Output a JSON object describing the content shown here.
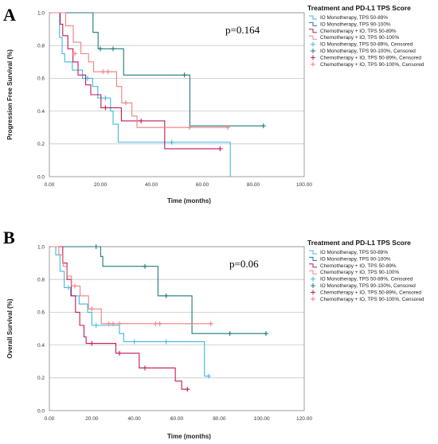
{
  "chart_data": [
    {
      "panel": "A",
      "type": "line",
      "subtype": "kaplan-meier",
      "annotation": "p=0.164",
      "xlabel": "Time (months)",
      "ylabel": "Progression Free Survival (%)",
      "xlim": [
        0,
        100
      ],
      "ylim": [
        0,
        1.0
      ],
      "xticks": [
        "0.00",
        "20.00",
        "40.00",
        "60.00",
        "80.00",
        "100.00"
      ],
      "yticks": [
        "0.0",
        "0.2",
        "0.4",
        "0.6",
        "0.8",
        "1.0"
      ],
      "grid": "horizontal",
      "legend_title": "Treatment and PD-L1 TPS Score",
      "legend_placement": "right",
      "legend": [
        {
          "label": "IO Monotherapy, TPS 50-89%",
          "color": "#3db8e0",
          "marker": "step"
        },
        {
          "label": "IO Monotherapy, TPS 90-100%",
          "color": "#1f7a7a",
          "marker": "step"
        },
        {
          "label": "Chemotherapy + IO, TPS 50-89%",
          "color": "#c2185b",
          "marker": "step"
        },
        {
          "label": "Chemotherapy + IO, TPS 90-100%",
          "color": "#f08080",
          "marker": "step"
        },
        {
          "label": "IO Monotherapy, TPS 50-89%, Censored",
          "color": "#3db8e0",
          "marker": "plus"
        },
        {
          "label": "IO Monotherapy, TPS 90-100%, Censored",
          "color": "#1f7a7a",
          "marker": "plus"
        },
        {
          "label": "Chemotherapy + IO, TPS 50-89%, Censored",
          "color": "#c2185b",
          "marker": "plus"
        },
        {
          "label": "Chemotherapy + IO, TPS 90-100%, Censored",
          "color": "#f08080",
          "marker": "plus"
        }
      ],
      "series": [
        {
          "name": "IO Monotherapy, TPS 50-89%",
          "color": "#3db8e0",
          "steps": [
            [
              0,
              1.0
            ],
            [
              4,
              0.85
            ],
            [
              5,
              0.75
            ],
            [
              6,
              0.7
            ],
            [
              9,
              0.65
            ],
            [
              13,
              0.6
            ],
            [
              17,
              0.55
            ],
            [
              19,
              0.48
            ],
            [
              24,
              0.4
            ],
            [
              25,
              0.32
            ],
            [
              27,
              0.21
            ],
            [
              71,
              0.0
            ]
          ],
          "end": 71,
          "censored": [
            [
              15,
              0.6
            ],
            [
              22,
              0.48
            ],
            [
              48,
              0.21
            ]
          ]
        },
        {
          "name": "IO Monotherapy, TPS 90-100%",
          "color": "#1f7a7a",
          "steps": [
            [
              0,
              1.0
            ],
            [
              17,
              0.88
            ],
            [
              19,
              0.78
            ],
            [
              29,
              0.62
            ],
            [
              55,
              0.31
            ]
          ],
          "end": 84,
          "censored": [
            [
              20,
              0.78
            ],
            [
              25,
              0.78
            ],
            [
              53,
              0.62
            ],
            [
              84,
              0.31
            ]
          ]
        },
        {
          "name": "Chemotherapy + IO, TPS 50-89%",
          "color": "#c2185b",
          "steps": [
            [
              0,
              1.0
            ],
            [
              4,
              0.93
            ],
            [
              5,
              0.86
            ],
            [
              7,
              0.78
            ],
            [
              9,
              0.7
            ],
            [
              11,
              0.62
            ],
            [
              14,
              0.56
            ],
            [
              16,
              0.5
            ],
            [
              20,
              0.42
            ],
            [
              28,
              0.34
            ],
            [
              45,
              0.17
            ]
          ],
          "end": 67,
          "censored": [
            [
              22,
              0.42
            ],
            [
              36,
              0.34
            ],
            [
              67,
              0.17
            ]
          ]
        },
        {
          "name": "Chemotherapy + IO, TPS 90-100%",
          "color": "#f08080",
          "steps": [
            [
              0,
              1.0
            ],
            [
              6,
              0.92
            ],
            [
              9,
              0.82
            ],
            [
              12,
              0.75
            ],
            [
              15,
              0.7
            ],
            [
              17,
              0.64
            ],
            [
              26,
              0.55
            ],
            [
              28,
              0.45
            ],
            [
              32,
              0.37
            ],
            [
              34,
              0.3
            ]
          ],
          "end": 70,
          "censored": [
            [
              10,
              0.75
            ],
            [
              21,
              0.64
            ],
            [
              23,
              0.64
            ],
            [
              30,
              0.45
            ],
            [
              55,
              0.3
            ],
            [
              70,
              0.3
            ]
          ]
        }
      ]
    },
    {
      "panel": "B",
      "type": "line",
      "subtype": "kaplan-meier",
      "annotation": "p=0.06",
      "xlabel": "Time (months)",
      "ylabel": "Overall Survival (%)",
      "xlim": [
        0,
        120
      ],
      "ylim": [
        0,
        1.0
      ],
      "xticks": [
        "0.00",
        "20.00",
        "40.00",
        "60.00",
        "80.00",
        "100.00",
        "120.00"
      ],
      "yticks": [
        "0.0",
        "0.2",
        "0.4",
        "0.6",
        "0.8",
        "1.0"
      ],
      "grid": "horizontal",
      "legend_title": "Treatment and PD-L1 TPS Score",
      "legend_placement": "right",
      "legend": [
        {
          "label": "IO Monotherapy, TPS 50-89%",
          "color": "#3db8e0",
          "marker": "step"
        },
        {
          "label": "IO Monotherapy, TPS 90-100%",
          "color": "#1f7a7a",
          "marker": "step"
        },
        {
          "label": "Chemotherapy + IO, TPS 50-89%",
          "color": "#c2185b",
          "marker": "step"
        },
        {
          "label": "Chemotherapy + IO, TPS 90-100%",
          "color": "#f08080",
          "marker": "step"
        },
        {
          "label": "IO Monotherapy, TPS 50-89%, Censored",
          "color": "#3db8e0",
          "marker": "plus"
        },
        {
          "label": "IO Monotherapy, TPS 90-100%, Censored",
          "color": "#1f7a7a",
          "marker": "plus"
        },
        {
          "label": "Chemotherapy + IO, TPS 50-89%, Censored",
          "color": "#c2185b",
          "marker": "plus"
        },
        {
          "label": "Chemotherapy + IO, TPS 90-100%, Censored",
          "color": "#f08080",
          "marker": "plus"
        }
      ],
      "series": [
        {
          "name": "IO Monotherapy, TPS 50-89%",
          "color": "#3db8e0",
          "steps": [
            [
              0,
              1.0
            ],
            [
              3,
              0.95
            ],
            [
              5,
              0.85
            ],
            [
              7,
              0.75
            ],
            [
              10,
              0.7
            ],
            [
              14,
              0.65
            ],
            [
              18,
              0.6
            ],
            [
              20,
              0.52
            ],
            [
              33,
              0.47
            ],
            [
              35,
              0.42
            ],
            [
              73,
              0.21
            ]
          ],
          "end": 75,
          "censored": [
            [
              9,
              0.75
            ],
            [
              22,
              0.52
            ],
            [
              40,
              0.42
            ],
            [
              55,
              0.42
            ],
            [
              75,
              0.21
            ]
          ]
        },
        {
          "name": "IO Monotherapy, TPS 90-100%",
          "color": "#1f7a7a",
          "steps": [
            [
              0,
              1.0
            ],
            [
              24,
              0.94
            ],
            [
              25,
              0.88
            ],
            [
              51,
              0.7
            ],
            [
              67,
              0.47
            ]
          ],
          "end": 102,
          "censored": [
            [
              22,
              1.0
            ],
            [
              45,
              0.88
            ],
            [
              55,
              0.7
            ],
            [
              85,
              0.47
            ],
            [
              102,
              0.47
            ]
          ]
        },
        {
          "name": "Chemotherapy + IO, TPS 50-89%",
          "color": "#c2185b",
          "steps": [
            [
              0,
              1.0
            ],
            [
              6,
              0.9
            ],
            [
              8,
              0.8
            ],
            [
              10,
              0.7
            ],
            [
              12,
              0.6
            ],
            [
              14,
              0.52
            ],
            [
              16,
              0.45
            ],
            [
              17,
              0.41
            ],
            [
              31,
              0.35
            ],
            [
              42,
              0.26
            ],
            [
              59,
              0.18
            ],
            [
              62,
              0.13
            ]
          ],
          "end": 65,
          "censored": [
            [
              20,
              0.41
            ],
            [
              33,
              0.35
            ],
            [
              45,
              0.26
            ],
            [
              65,
              0.13
            ]
          ]
        },
        {
          "name": "Chemotherapy + IO, TPS 90-100%",
          "color": "#f08080",
          "steps": [
            [
              0,
              1.0
            ],
            [
              4,
              0.95
            ],
            [
              6,
              0.88
            ],
            [
              8,
              0.82
            ],
            [
              10,
              0.76
            ],
            [
              14,
              0.7
            ],
            [
              18,
              0.62
            ],
            [
              24,
              0.53
            ]
          ],
          "end": 76,
          "censored": [
            [
              12,
              0.76
            ],
            [
              20,
              0.62
            ],
            [
              28,
              0.53
            ],
            [
              30,
              0.53
            ],
            [
              33,
              0.53
            ],
            [
              50,
              0.53
            ],
            [
              52,
              0.53
            ],
            [
              76,
              0.53
            ]
          ]
        }
      ]
    }
  ]
}
